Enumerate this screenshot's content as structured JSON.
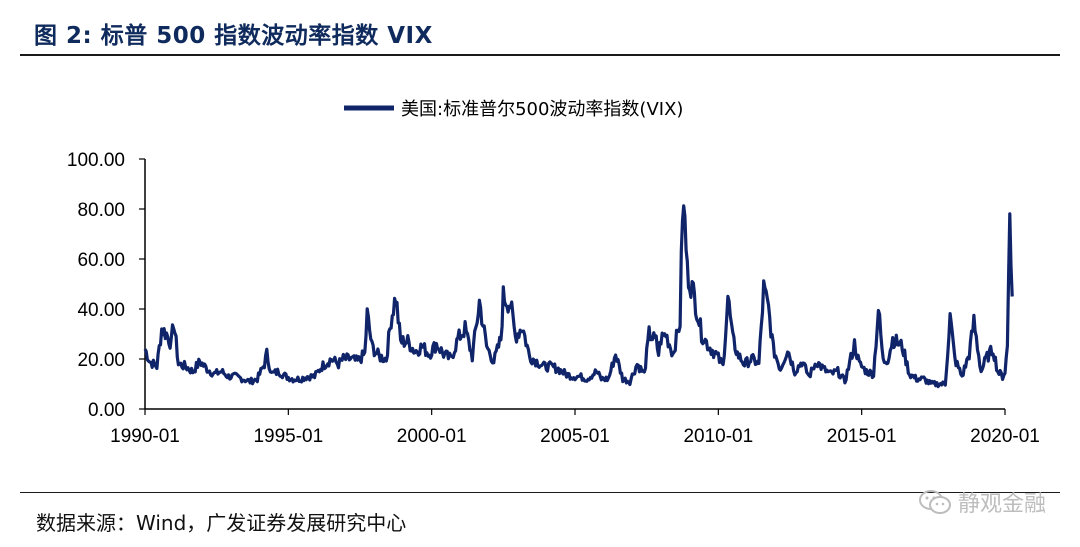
{
  "figure": {
    "title": "图 2:  标普 500 指数波动率指数 VIX",
    "source": "数据来源：Wind，广发证券发展研究中心",
    "watermark": "静观金融"
  },
  "chart_data": {
    "type": "line",
    "title": "",
    "xlabel": "",
    "ylabel": "",
    "ylim": [
      0,
      100
    ],
    "y_ticks": [
      "0.00",
      "20.00",
      "40.00",
      "60.00",
      "80.00",
      "100.00"
    ],
    "x_ticks": [
      "1990-01",
      "1995-01",
      "2000-01",
      "2005-01",
      "2010-01",
      "2015-01",
      "2020-01"
    ],
    "x_range": [
      "1990-01",
      "2020-04"
    ],
    "legend_position": "top-center",
    "grid": false,
    "color": "#10246a",
    "series": [
      {
        "name": "美国:标准普尔500波动率指数(VIX)",
        "points": [
          [
            "1990-01",
            24
          ],
          [
            "1990-03",
            19
          ],
          [
            "1990-06",
            17
          ],
          [
            "1990-08",
            32
          ],
          [
            "1990-10",
            30
          ],
          [
            "1990-12",
            26
          ],
          [
            "1991-01",
            35
          ],
          [
            "1991-03",
            18
          ],
          [
            "1991-06",
            17
          ],
          [
            "1991-09",
            15
          ],
          [
            "1991-12",
            19
          ],
          [
            "1992-03",
            16
          ],
          [
            "1992-06",
            14
          ],
          [
            "1992-09",
            15
          ],
          [
            "1992-12",
            13
          ],
          [
            "1993-03",
            13
          ],
          [
            "1993-06",
            12
          ],
          [
            "1993-09",
            11
          ],
          [
            "1993-12",
            12
          ],
          [
            "1994-03",
            18
          ],
          [
            "1994-04",
            22
          ],
          [
            "1994-06",
            14
          ],
          [
            "1994-09",
            15
          ],
          [
            "1994-12",
            13
          ],
          [
            "1995-03",
            12
          ],
          [
            "1995-06",
            12
          ],
          [
            "1995-09",
            13
          ],
          [
            "1995-12",
            13
          ],
          [
            "1996-03",
            17
          ],
          [
            "1996-07",
            20
          ],
          [
            "1996-10",
            18
          ],
          [
            "1996-12",
            20
          ],
          [
            "1997-03",
            20
          ],
          [
            "1997-06",
            19
          ],
          [
            "1997-09",
            22
          ],
          [
            "1997-10",
            38
          ],
          [
            "1997-12",
            25
          ],
          [
            "1998-03",
            21
          ],
          [
            "1998-06",
            20
          ],
          [
            "1998-08",
            36
          ],
          [
            "1998-10",
            45
          ],
          [
            "1998-12",
            27
          ],
          [
            "1999-03",
            27
          ],
          [
            "1999-06",
            23
          ],
          [
            "1999-09",
            25
          ],
          [
            "1999-12",
            22
          ],
          [
            "2000-03",
            26
          ],
          [
            "2000-06",
            22
          ],
          [
            "2000-09",
            20
          ],
          [
            "2000-12",
            28
          ],
          [
            "2001-03",
            32
          ],
          [
            "2001-06",
            21
          ],
          [
            "2001-09",
            43
          ],
          [
            "2001-12",
            25
          ],
          [
            "2002-03",
            19
          ],
          [
            "2002-06",
            28
          ],
          [
            "2002-07",
            45
          ],
          [
            "2002-10",
            42
          ],
          [
            "2002-12",
            29
          ],
          [
            "2003-03",
            33
          ],
          [
            "2003-06",
            21
          ],
          [
            "2003-09",
            19
          ],
          [
            "2003-12",
            17
          ],
          [
            "2004-03",
            17
          ],
          [
            "2004-06",
            16
          ],
          [
            "2004-09",
            14
          ],
          [
            "2004-12",
            13
          ],
          [
            "2005-03",
            13
          ],
          [
            "2005-06",
            12
          ],
          [
            "2005-10",
            15
          ],
          [
            "2005-12",
            12
          ],
          [
            "2006-03",
            12
          ],
          [
            "2006-06",
            22
          ],
          [
            "2006-09",
            12
          ],
          [
            "2006-12",
            11
          ],
          [
            "2007-03",
            18
          ],
          [
            "2007-06",
            14
          ],
          [
            "2007-08",
            30
          ],
          [
            "2007-11",
            27
          ],
          [
            "2007-12",
            22
          ],
          [
            "2008-01",
            28
          ],
          [
            "2008-03",
            30
          ],
          [
            "2008-06",
            22
          ],
          [
            "2008-09",
            35
          ],
          [
            "2008-10",
            80
          ],
          [
            "2008-11",
            75
          ],
          [
            "2008-12",
            55
          ],
          [
            "2009-03",
            45
          ],
          [
            "2009-06",
            30
          ],
          [
            "2009-09",
            25
          ],
          [
            "2009-12",
            22
          ],
          [
            "2010-03",
            17
          ],
          [
            "2010-05",
            45
          ],
          [
            "2010-07",
            28
          ],
          [
            "2010-09",
            22
          ],
          [
            "2010-12",
            18
          ],
          [
            "2011-03",
            20
          ],
          [
            "2011-06",
            18
          ],
          [
            "2011-08",
            48
          ],
          [
            "2011-10",
            40
          ],
          [
            "2011-12",
            24
          ],
          [
            "2012-03",
            16
          ],
          [
            "2012-06",
            24
          ],
          [
            "2012-09",
            15
          ],
          [
            "2012-12",
            19
          ],
          [
            "2013-03",
            13
          ],
          [
            "2013-06",
            19
          ],
          [
            "2013-09",
            16
          ],
          [
            "2013-12",
            14
          ],
          [
            "2014-03",
            15
          ],
          [
            "2014-06",
            11
          ],
          [
            "2014-10",
            26
          ],
          [
            "2014-12",
            18
          ],
          [
            "2015-03",
            15
          ],
          [
            "2015-06",
            14
          ],
          [
            "2015-08",
            40
          ],
          [
            "2015-10",
            19
          ],
          [
            "2015-12",
            20
          ],
          [
            "2016-02",
            28
          ],
          [
            "2016-06",
            25
          ],
          [
            "2016-09",
            14
          ],
          [
            "2016-12",
            12
          ],
          [
            "2017-03",
            12
          ],
          [
            "2017-06",
            10
          ],
          [
            "2017-09",
            10
          ],
          [
            "2017-12",
            10
          ],
          [
            "2018-02",
            37
          ],
          [
            "2018-04",
            20
          ],
          [
            "2018-07",
            13
          ],
          [
            "2018-10",
            22
          ],
          [
            "2018-12",
            35
          ],
          [
            "2019-03",
            15
          ],
          [
            "2019-05",
            20
          ],
          [
            "2019-08",
            24
          ],
          [
            "2019-10",
            15
          ],
          [
            "2019-12",
            13
          ],
          [
            "2020-01",
            15
          ],
          [
            "2020-02",
            25
          ],
          [
            "2020-03",
            82
          ],
          [
            "2020-04",
            45
          ]
        ]
      }
    ]
  }
}
